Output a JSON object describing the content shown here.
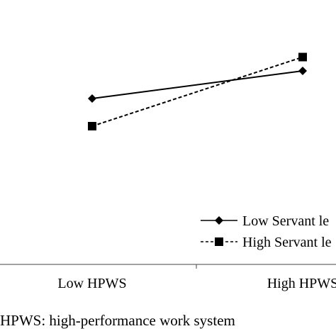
{
  "chart_data": {
    "type": "line",
    "categories": [
      "Low HPWS",
      "High HPWS"
    ],
    "series": [
      {
        "name": "Low Servant le",
        "values": [
          3.0,
          3.5
        ],
        "style": "solid",
        "marker": "diamond",
        "color": "#000000"
      },
      {
        "name": "High Servant le",
        "values": [
          2.5,
          3.75
        ],
        "style": "dashed",
        "marker": "square",
        "color": "#000000"
      }
    ],
    "title": "",
    "xlabel": "",
    "ylabel": "",
    "ylim": [
      0,
      4.5
    ],
    "grid": false,
    "legend_position": "bottom-right",
    "note": "HPWS: high-performance work system"
  }
}
